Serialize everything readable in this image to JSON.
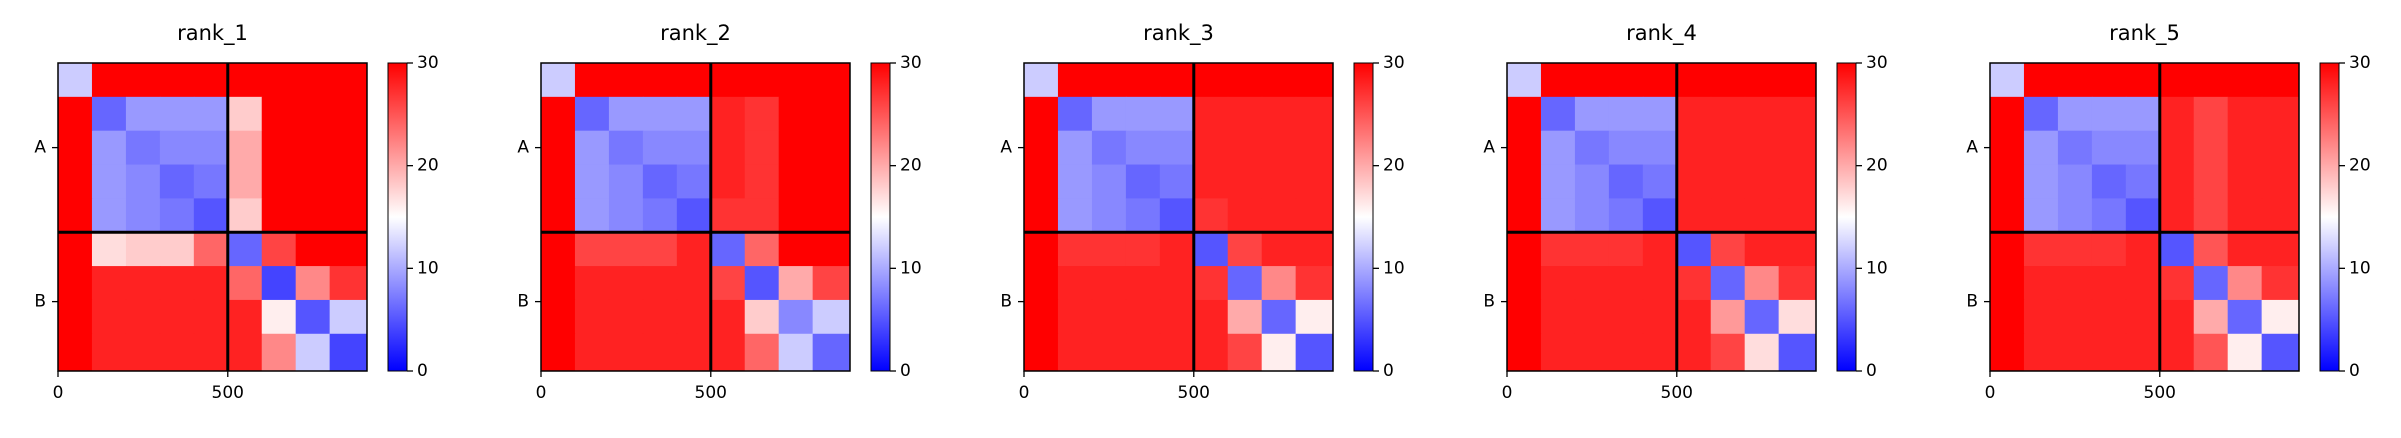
{
  "chart_data": [
    {
      "type": "heatmap",
      "title": "rank_1",
      "xlim": [
        0,
        910
      ],
      "ylim": [
        910,
        0
      ],
      "xticks": [
        0,
        500
      ],
      "yticks": [
        {
          "value": 250,
          "label": "A"
        },
        {
          "value": 705,
          "label": "B"
        }
      ],
      "boundaries": [
        500
      ],
      "bins": [
        0,
        100,
        200,
        300,
        400,
        500,
        600,
        700,
        800,
        910
      ],
      "values": [
        [
          12,
          30,
          30,
          30,
          30,
          30,
          30,
          30,
          30
        ],
        [
          30,
          6,
          9,
          9,
          9,
          18,
          30,
          30,
          30
        ],
        [
          30,
          9,
          7,
          8,
          8,
          20,
          30,
          30,
          30
        ],
        [
          30,
          9,
          8,
          6,
          7,
          20,
          30,
          30,
          30
        ],
        [
          30,
          9,
          8,
          7,
          5,
          18,
          30,
          30,
          30
        ],
        [
          30,
          17,
          18,
          18,
          24,
          6,
          26,
          30,
          30
        ],
        [
          30,
          28,
          28,
          28,
          28,
          24,
          4,
          22,
          27
        ],
        [
          30,
          28,
          28,
          28,
          28,
          28,
          16,
          5,
          12
        ],
        [
          30,
          28,
          28,
          28,
          28,
          28,
          22,
          12,
          4
        ]
      ],
      "clim": [
        0,
        30
      ],
      "cticks": [
        0,
        10,
        20,
        30
      ],
      "colors": [
        "#0000ff",
        "#ffffff",
        "#ff0000"
      ]
    },
    {
      "type": "heatmap",
      "title": "rank_2",
      "xlim": [
        0,
        910
      ],
      "ylim": [
        910,
        0
      ],
      "xticks": [
        0,
        500
      ],
      "yticks": [
        {
          "value": 250,
          "label": "A"
        },
        {
          "value": 705,
          "label": "B"
        }
      ],
      "boundaries": [
        500
      ],
      "bins": [
        0,
        100,
        200,
        300,
        400,
        500,
        600,
        700,
        800,
        910
      ],
      "values": [
        [
          12,
          30,
          30,
          30,
          30,
          30,
          30,
          30,
          30
        ],
        [
          30,
          6,
          9,
          9,
          9,
          28,
          27,
          30,
          30
        ],
        [
          30,
          9,
          7,
          8,
          8,
          28,
          27,
          30,
          30
        ],
        [
          30,
          9,
          8,
          6,
          7,
          28,
          27,
          30,
          30
        ],
        [
          30,
          9,
          8,
          7,
          5,
          27,
          27,
          30,
          30
        ],
        [
          30,
          26,
          26,
          26,
          28,
          6,
          24,
          30,
          30
        ],
        [
          30,
          28,
          28,
          28,
          28,
          26,
          5,
          20,
          26
        ],
        [
          30,
          28,
          28,
          28,
          28,
          28,
          18,
          8,
          12
        ],
        [
          30,
          28,
          28,
          28,
          28,
          28,
          24,
          12,
          6
        ]
      ],
      "clim": [
        0,
        30
      ],
      "cticks": [
        0,
        10,
        20,
        30
      ],
      "colors": [
        "#0000ff",
        "#ffffff",
        "#ff0000"
      ]
    },
    {
      "type": "heatmap",
      "title": "rank_3",
      "xlim": [
        0,
        910
      ],
      "ylim": [
        910,
        0
      ],
      "xticks": [
        0,
        500
      ],
      "yticks": [
        {
          "value": 250,
          "label": "A"
        },
        {
          "value": 705,
          "label": "B"
        }
      ],
      "boundaries": [
        500
      ],
      "bins": [
        0,
        100,
        200,
        300,
        400,
        500,
        600,
        700,
        800,
        910
      ],
      "values": [
        [
          12,
          30,
          30,
          30,
          30,
          30,
          30,
          30,
          30
        ],
        [
          30,
          6,
          9,
          9,
          9,
          28,
          28,
          28,
          28
        ],
        [
          30,
          9,
          7,
          8,
          8,
          28,
          28,
          28,
          28
        ],
        [
          30,
          9,
          8,
          6,
          7,
          28,
          28,
          28,
          28
        ],
        [
          30,
          9,
          8,
          7,
          5,
          27,
          28,
          28,
          28
        ],
        [
          30,
          27,
          27,
          27,
          28,
          5,
          26,
          28,
          28
        ],
        [
          30,
          28,
          28,
          28,
          28,
          27,
          6,
          22,
          27
        ],
        [
          30,
          28,
          28,
          28,
          28,
          28,
          20,
          6,
          16
        ],
        [
          30,
          28,
          28,
          28,
          28,
          28,
          26,
          16,
          5
        ]
      ],
      "clim": [
        0,
        30
      ],
      "cticks": [
        0,
        10,
        20,
        30
      ],
      "colors": [
        "#0000ff",
        "#ffffff",
        "#ff0000"
      ]
    },
    {
      "type": "heatmap",
      "title": "rank_4",
      "xlim": [
        0,
        910
      ],
      "ylim": [
        910,
        0
      ],
      "xticks": [
        0,
        500
      ],
      "yticks": [
        {
          "value": 250,
          "label": "A"
        },
        {
          "value": 705,
          "label": "B"
        }
      ],
      "boundaries": [
        500
      ],
      "bins": [
        0,
        100,
        200,
        300,
        400,
        500,
        600,
        700,
        800,
        910
      ],
      "values": [
        [
          12,
          30,
          30,
          30,
          30,
          30,
          30,
          30,
          30
        ],
        [
          30,
          6,
          9,
          9,
          9,
          28,
          28,
          28,
          28
        ],
        [
          30,
          9,
          7,
          8,
          8,
          28,
          28,
          28,
          28
        ],
        [
          30,
          9,
          8,
          6,
          7,
          28,
          28,
          28,
          28
        ],
        [
          30,
          9,
          8,
          7,
          5,
          28,
          28,
          28,
          28
        ],
        [
          30,
          27,
          27,
          27,
          28,
          5,
          26,
          28,
          28
        ],
        [
          30,
          28,
          28,
          28,
          28,
          27,
          6,
          22,
          27
        ],
        [
          30,
          28,
          28,
          28,
          28,
          28,
          21,
          6,
          17
        ],
        [
          30,
          28,
          28,
          28,
          28,
          28,
          26,
          17,
          5
        ]
      ],
      "clim": [
        0,
        30
      ],
      "cticks": [
        0,
        10,
        20,
        30
      ],
      "colors": [
        "#0000ff",
        "#ffffff",
        "#ff0000"
      ]
    },
    {
      "type": "heatmap",
      "title": "rank_5",
      "xlim": [
        0,
        910
      ],
      "ylim": [
        910,
        0
      ],
      "xticks": [
        0,
        500
      ],
      "yticks": [
        {
          "value": 250,
          "label": "A"
        },
        {
          "value": 705,
          "label": "B"
        }
      ],
      "boundaries": [
        500
      ],
      "bins": [
        0,
        100,
        200,
        300,
        400,
        500,
        600,
        700,
        800,
        910
      ],
      "values": [
        [
          12,
          30,
          30,
          30,
          30,
          30,
          30,
          30,
          30
        ],
        [
          30,
          6,
          9,
          9,
          9,
          28,
          26,
          28,
          28
        ],
        [
          30,
          9,
          7,
          8,
          8,
          28,
          26,
          28,
          28
        ],
        [
          30,
          9,
          8,
          6,
          7,
          28,
          26,
          28,
          28
        ],
        [
          30,
          9,
          8,
          7,
          5,
          28,
          26,
          28,
          28
        ],
        [
          30,
          27,
          27,
          27,
          28,
          5,
          25,
          28,
          28
        ],
        [
          30,
          28,
          28,
          28,
          28,
          27,
          6,
          22,
          27
        ],
        [
          30,
          28,
          28,
          28,
          28,
          28,
          20,
          6,
          16
        ],
        [
          30,
          28,
          28,
          28,
          28,
          28,
          25,
          16,
          5
        ]
      ],
      "clim": [
        0,
        30
      ],
      "cticks": [
        0,
        10,
        20,
        30
      ],
      "colors": [
        "#0000ff",
        "#ffffff",
        "#ff0000"
      ]
    }
  ]
}
